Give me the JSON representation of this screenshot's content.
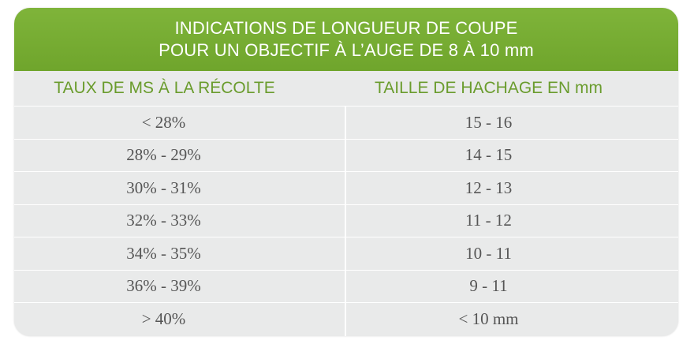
{
  "title": {
    "line1": "INDICATIONS DE LONGUEUR DE COUPE",
    "line2": "POUR UN OBJECTIF À L’AUGE DE 8 À 10 mm"
  },
  "columns": {
    "left": "TAUX DE MS À LA RÉCOLTE",
    "right": "TAILLE DE HACHAGE EN mm"
  },
  "rows": [
    {
      "ms": "< 28%",
      "taille": "15 - 16"
    },
    {
      "ms": "28% - 29%",
      "taille": "14 - 15"
    },
    {
      "ms": "30% - 31%",
      "taille": "12 - 13"
    },
    {
      "ms": "32% - 33%",
      "taille": "11 - 12"
    },
    {
      "ms": "34% - 35%",
      "taille": "10 - 11"
    },
    {
      "ms": "36% - 39%",
      "taille": "9 - 11"
    },
    {
      "ms": "> 40%",
      "taille": "< 10 mm"
    }
  ],
  "colors": {
    "header_green": "#72a830",
    "column_header_text": "#6a9c2d",
    "table_background": "#e9eaea",
    "cell_text": "#555555"
  }
}
